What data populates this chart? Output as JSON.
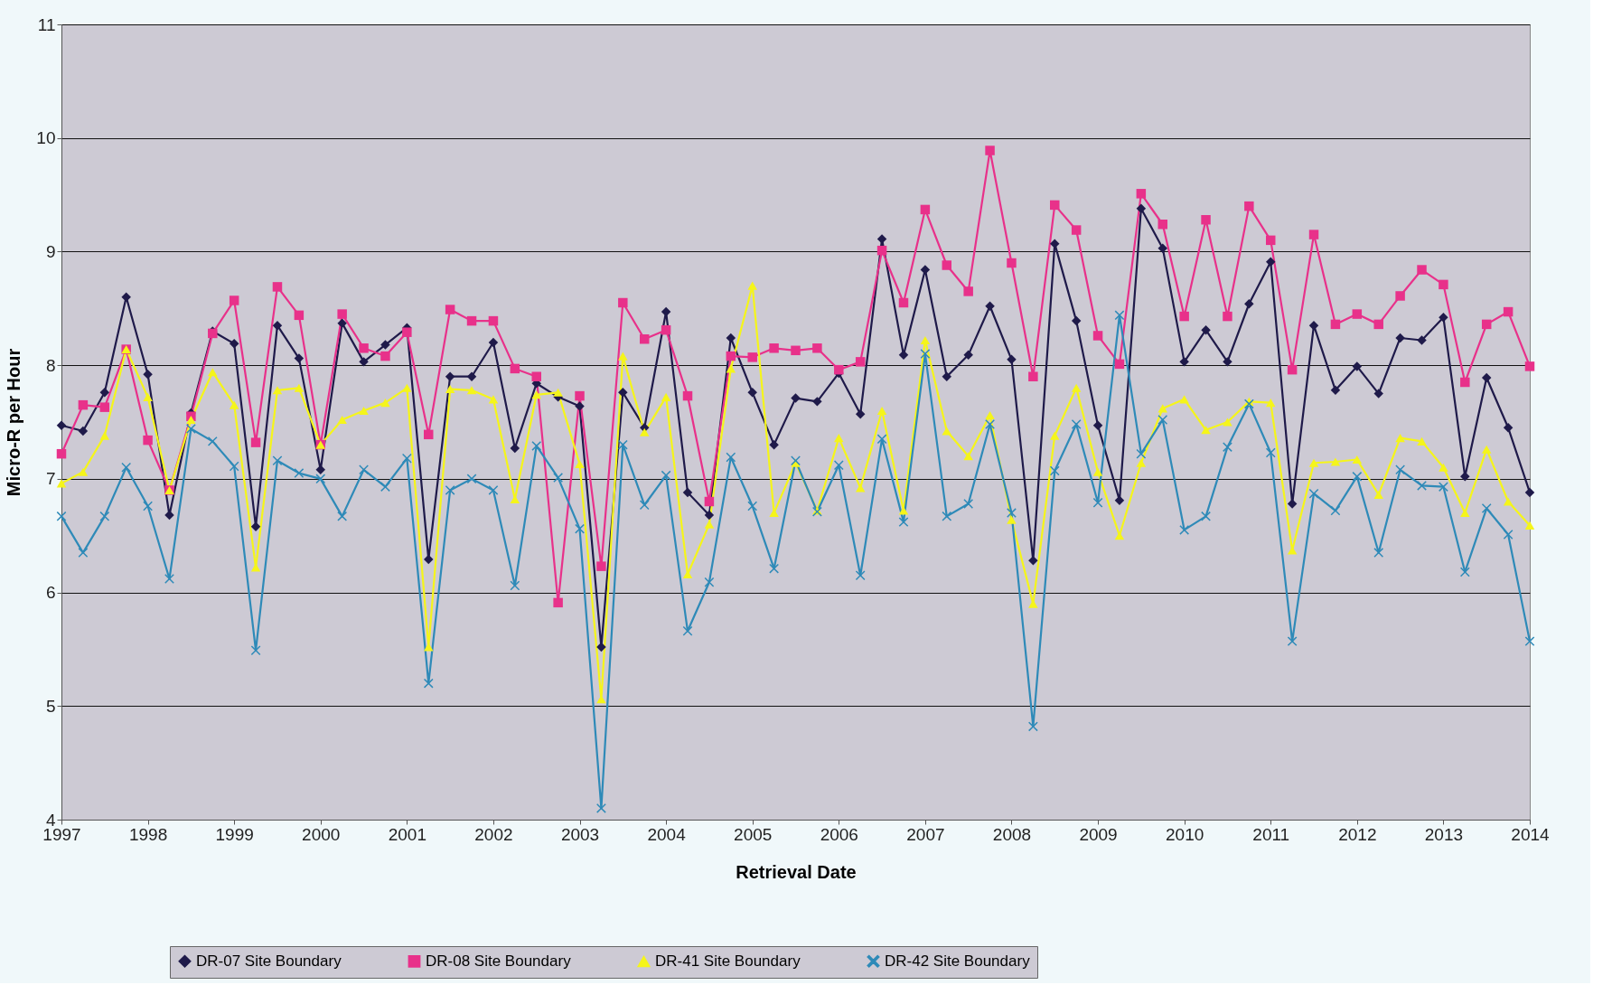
{
  "chart_data": {
    "type": "line",
    "xlabel": "Retrieval Date",
    "ylabel": "Micro-R per Hour",
    "x": [
      1997,
      1997.25,
      1997.5,
      1997.75,
      1998,
      1998.25,
      1998.5,
      1998.75,
      1999,
      1999.25,
      1999.5,
      1999.75,
      2000,
      2000.25,
      2000.5,
      2000.75,
      2001,
      2001.25,
      2001.5,
      2001.75,
      2002,
      2002.25,
      2002.5,
      2002.75,
      2003,
      2003.25,
      2003.5,
      2003.75,
      2004,
      2004.25,
      2004.5,
      2004.75,
      2005,
      2005.25,
      2005.5,
      2005.75,
      2006,
      2006.25,
      2006.5,
      2006.75,
      2007,
      2007.25,
      2007.5,
      2007.75,
      2008,
      2008.25,
      2008.5,
      2008.75,
      2009,
      2009.25,
      2009.5,
      2009.75,
      2010,
      2010.25,
      2010.5,
      2010.75,
      2011,
      2011.25,
      2011.5,
      2011.75,
      2012,
      2012.25,
      2012.5,
      2012.75,
      2013,
      2013.25,
      2013.5,
      2013.75,
      2014
    ],
    "xlim": [
      1997,
      2014
    ],
    "xticks": [
      1997,
      1998,
      1999,
      2000,
      2001,
      2002,
      2003,
      2004,
      2005,
      2006,
      2007,
      2008,
      2009,
      2010,
      2011,
      2012,
      2013,
      2014
    ],
    "ylim": [
      4,
      11
    ],
    "yticks": [
      4,
      5,
      6,
      7,
      8,
      9,
      10,
      11
    ],
    "grid": "y",
    "legend": "bottom",
    "series": [
      {
        "name": "DR-07 Site Boundary",
        "color": "#1f1a4a",
        "marker": "diamond",
        "values": [
          7.47,
          7.42,
          7.76,
          8.6,
          7.92,
          6.68,
          7.58,
          8.3,
          8.19,
          6.58,
          8.35,
          8.06,
          7.08,
          8.37,
          8.03,
          8.18,
          8.33,
          6.29,
          7.9,
          7.9,
          8.2,
          7.27,
          7.84,
          7.72,
          7.64,
          5.52,
          7.76,
          7.45,
          8.47,
          6.88,
          6.68,
          8.24,
          7.76,
          7.3,
          7.71,
          7.68,
          7.93,
          7.57,
          9.11,
          8.09,
          8.84,
          7.9,
          8.09,
          8.52,
          8.05,
          6.28,
          9.07,
          8.39,
          7.47,
          6.81,
          9.38,
          9.03,
          8.03,
          8.31,
          8.03,
          8.54,
          8.91,
          6.78,
          8.35,
          7.78,
          7.99,
          7.75,
          8.24,
          8.22,
          8.42,
          7.02,
          7.89,
          7.45,
          6.88
        ]
      },
      {
        "name": "DR-08 Site Boundary",
        "color": "#e8318a",
        "marker": "square",
        "values": [
          7.22,
          7.65,
          7.63,
          8.14,
          7.34,
          6.9,
          7.55,
          8.28,
          8.57,
          7.32,
          8.69,
          8.44,
          7.3,
          8.45,
          8.15,
          8.08,
          8.29,
          7.39,
          8.49,
          8.39,
          8.39,
          7.97,
          7.9,
          5.91,
          7.73,
          6.23,
          8.55,
          8.23,
          8.31,
          7.73,
          6.8,
          8.08,
          8.07,
          8.15,
          8.13,
          8.15,
          7.96,
          8.03,
          9.01,
          8.55,
          9.37,
          8.88,
          8.65,
          9.89,
          8.9,
          7.9,
          9.41,
          9.19,
          8.26,
          8.01,
          9.51,
          9.24,
          8.43,
          9.28,
          8.43,
          9.4,
          9.1,
          7.96,
          9.15,
          8.36,
          8.45,
          8.36,
          8.61,
          8.84,
          8.71,
          7.85,
          8.36,
          8.47,
          7.99
        ]
      },
      {
        "name": "DR-41 Site Boundary",
        "color": "#f5f51a",
        "marker": "triangle",
        "values": [
          6.96,
          7.06,
          7.38,
          8.14,
          7.72,
          6.9,
          7.52,
          7.94,
          7.65,
          6.22,
          7.78,
          7.8,
          7.3,
          7.52,
          7.6,
          7.67,
          7.8,
          5.52,
          7.79,
          7.78,
          7.7,
          6.82,
          7.74,
          7.76,
          7.13,
          5.06,
          8.08,
          7.41,
          7.72,
          6.16,
          6.6,
          7.97,
          8.7,
          6.7,
          7.14,
          6.72,
          7.36,
          6.92,
          7.6,
          6.72,
          8.22,
          7.42,
          7.2,
          7.56,
          6.64,
          5.9,
          7.38,
          7.8,
          7.06,
          6.5,
          7.14,
          7.62,
          7.7,
          7.43,
          7.5,
          7.68,
          7.67,
          6.37,
          7.14,
          7.15,
          7.17,
          6.86,
          7.36,
          7.33,
          7.1,
          6.7,
          7.26,
          6.8,
          6.59
        ]
      },
      {
        "name": "DR-42 Site Boundary",
        "color": "#2e8ab8",
        "marker": "cross",
        "values": [
          6.67,
          6.35,
          6.67,
          7.1,
          6.76,
          6.12,
          7.44,
          7.33,
          7.11,
          5.49,
          7.16,
          7.05,
          7.0,
          6.67,
          7.08,
          6.93,
          7.18,
          5.2,
          6.9,
          7.0,
          6.9,
          6.06,
          7.29,
          7.01,
          6.56,
          4.1,
          7.3,
          6.77,
          7.03,
          5.66,
          6.09,
          7.19,
          6.76,
          6.21,
          7.16,
          6.71,
          7.12,
          6.15,
          7.35,
          6.62,
          8.1,
          6.67,
          6.78,
          7.48,
          6.7,
          4.82,
          7.07,
          7.48,
          6.79,
          8.44,
          7.22,
          7.52,
          6.55,
          6.67,
          7.28,
          7.66,
          7.23,
          5.57,
          6.87,
          6.72,
          7.02,
          6.35,
          7.08,
          6.94,
          6.93,
          6.18,
          6.74,
          6.51,
          5.57
        ]
      }
    ]
  }
}
